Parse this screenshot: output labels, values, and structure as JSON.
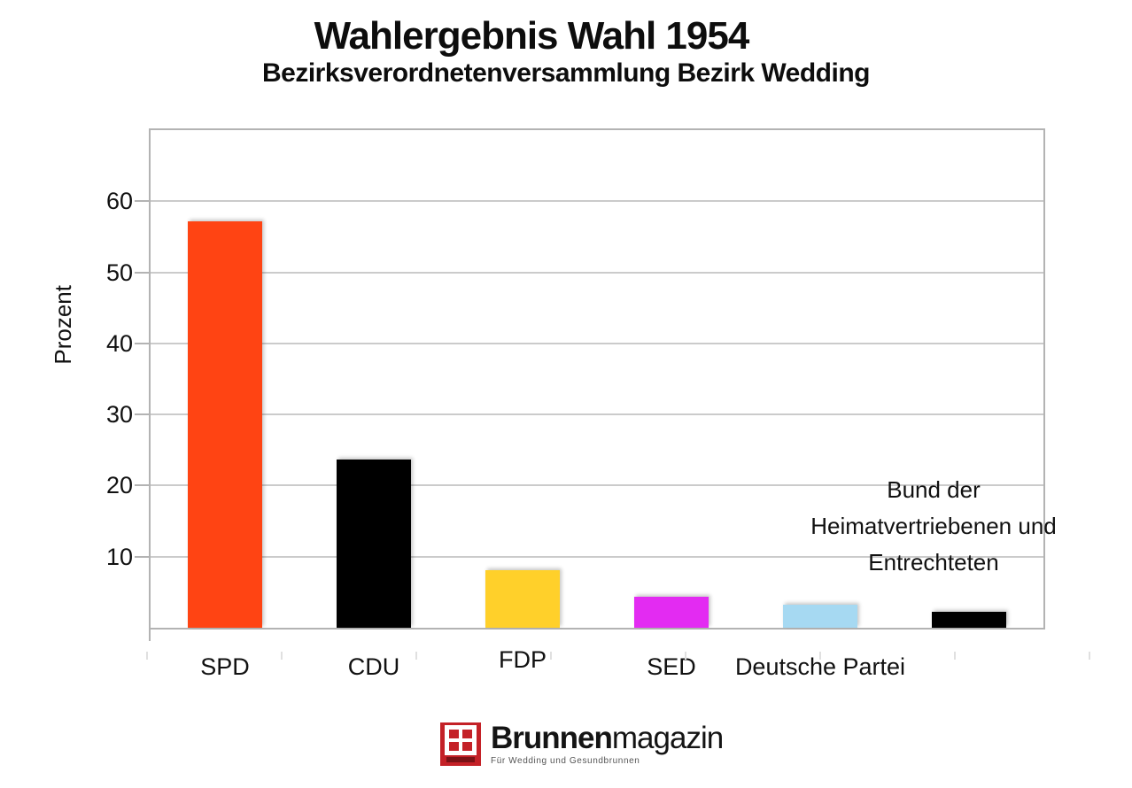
{
  "page": {
    "background": "#ffffff"
  },
  "chart_data": {
    "type": "bar",
    "title": "Wahlergebnis Wahl 1954",
    "subtitle": "Bezirksverordnetenversammlung Bezirk Wedding",
    "xlabel": "",
    "ylabel": "Prozent",
    "ylim": [
      0,
      70
    ],
    "yticks": [
      10,
      20,
      30,
      40,
      50,
      60
    ],
    "grid": true,
    "legend": false,
    "categories": [
      "SPD",
      "CDU",
      "FDP",
      "SED",
      "Deutsche Partei",
      "Bund der Heimatvertriebenen und Entrechteten"
    ],
    "values": [
      57.2,
      23.7,
      8.1,
      4.4,
      3.2,
      2.2
    ],
    "bar_colors": [
      "#ff4413",
      "#000000",
      "#ffd02a",
      "#e32bf2",
      "#a6d9f2",
      "#000000"
    ],
    "bar_ids": [
      "spd",
      "cdu",
      "fdp",
      "sed",
      "deutsche-partei",
      "bhe"
    ],
    "bottom_axis_labels": [
      "SPD",
      "CDU",
      "FDP",
      "SED",
      "Deutsche Partei"
    ],
    "annotation": {
      "lines": [
        "Bund der",
        "Heimatvertriebenen und",
        "Entrechteten"
      ],
      "applies_to": "bhe"
    }
  },
  "theme": {
    "grid_color": "#cbcbcb",
    "axis_color": "#b3b3b3",
    "text_color": "#111111"
  },
  "footer": {
    "brand_bold": "Brunnen",
    "brand_light": "magazin",
    "tagline": "Für Wedding und Gesundbrunnen",
    "logo_red": "#c42127"
  }
}
